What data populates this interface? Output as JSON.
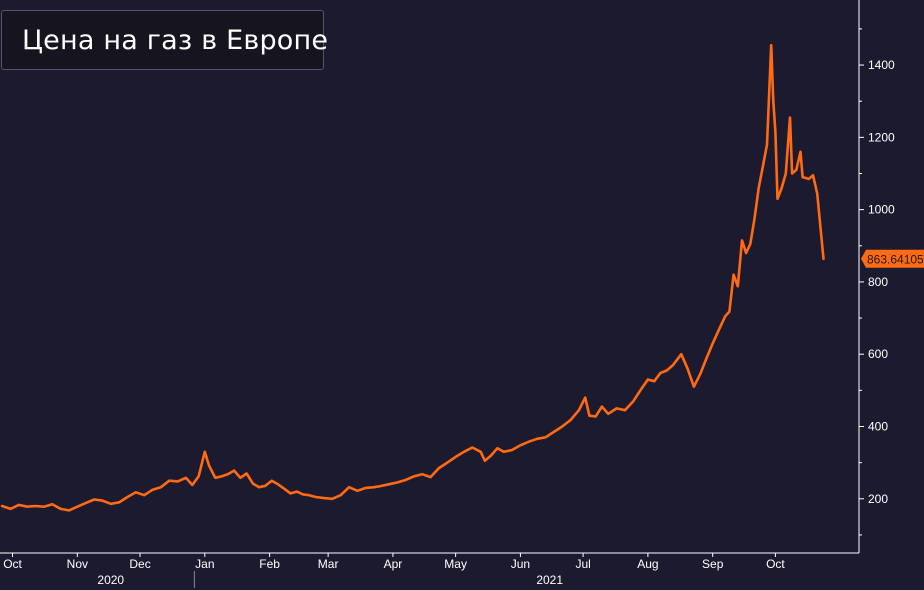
{
  "chart_data": {
    "type": "line",
    "title": "",
    "series": [
      {
        "name": "Цена на газ в Европе",
        "color": "#ff6a13",
        "last_value_label": "863.64105",
        "points": [
          [
            "2020-10-01",
            180
          ],
          [
            "2020-10-05",
            172
          ],
          [
            "2020-10-09",
            183
          ],
          [
            "2020-10-13",
            178
          ],
          [
            "2020-10-17",
            180
          ],
          [
            "2020-10-21",
            178
          ],
          [
            "2020-10-25",
            185
          ],
          [
            "2020-10-29",
            172
          ],
          [
            "2020-11-02",
            168
          ],
          [
            "2020-11-06",
            178
          ],
          [
            "2020-11-10",
            188
          ],
          [
            "2020-11-14",
            198
          ],
          [
            "2020-11-18",
            195
          ],
          [
            "2020-11-22",
            186
          ],
          [
            "2020-11-26",
            190
          ],
          [
            "2020-11-30",
            205
          ],
          [
            "2020-12-04",
            218
          ],
          [
            "2020-12-08",
            210
          ],
          [
            "2020-12-12",
            225
          ],
          [
            "2020-12-16",
            232
          ],
          [
            "2020-12-20",
            250
          ],
          [
            "2020-12-24",
            248
          ],
          [
            "2020-12-28",
            258
          ],
          [
            "2020-12-31",
            238
          ],
          [
            "2021-01-03",
            262
          ],
          [
            "2021-01-06",
            330
          ],
          [
            "2021-01-08",
            292
          ],
          [
            "2021-01-11",
            258
          ],
          [
            "2021-01-14",
            262
          ],
          [
            "2021-01-17",
            268
          ],
          [
            "2021-01-20",
            278
          ],
          [
            "2021-01-23",
            258
          ],
          [
            "2021-01-26",
            270
          ],
          [
            "2021-01-29",
            242
          ],
          [
            "2021-02-01",
            232
          ],
          [
            "2021-02-04",
            236
          ],
          [
            "2021-02-07",
            250
          ],
          [
            "2021-02-10",
            240
          ],
          [
            "2021-02-13",
            228
          ],
          [
            "2021-02-16",
            215
          ],
          [
            "2021-02-19",
            220
          ],
          [
            "2021-02-22",
            212
          ],
          [
            "2021-02-25",
            210
          ],
          [
            "2021-02-28",
            205
          ],
          [
            "2021-03-04",
            202
          ],
          [
            "2021-03-08",
            200
          ],
          [
            "2021-03-12",
            210
          ],
          [
            "2021-03-16",
            232
          ],
          [
            "2021-03-20",
            222
          ],
          [
            "2021-03-24",
            230
          ],
          [
            "2021-03-28",
            232
          ],
          [
            "2021-03-31",
            235
          ],
          [
            "2021-04-04",
            240
          ],
          [
            "2021-04-08",
            245
          ],
          [
            "2021-04-12",
            252
          ],
          [
            "2021-04-16",
            262
          ],
          [
            "2021-04-20",
            268
          ],
          [
            "2021-04-24",
            260
          ],
          [
            "2021-04-28",
            285
          ],
          [
            "2021-05-02",
            300
          ],
          [
            "2021-05-06",
            316
          ],
          [
            "2021-05-10",
            330
          ],
          [
            "2021-05-14",
            342
          ],
          [
            "2021-05-18",
            330
          ],
          [
            "2021-05-20",
            305
          ],
          [
            "2021-05-23",
            320
          ],
          [
            "2021-05-26",
            340
          ],
          [
            "2021-05-29",
            330
          ],
          [
            "2021-06-02",
            335
          ],
          [
            "2021-06-06",
            348
          ],
          [
            "2021-06-10",
            358
          ],
          [
            "2021-06-14",
            366
          ],
          [
            "2021-06-18",
            370
          ],
          [
            "2021-06-22",
            385
          ],
          [
            "2021-06-26",
            400
          ],
          [
            "2021-06-30",
            418
          ],
          [
            "2021-07-04",
            445
          ],
          [
            "2021-07-07",
            480
          ],
          [
            "2021-07-09",
            430
          ],
          [
            "2021-07-12",
            428
          ],
          [
            "2021-07-15",
            455
          ],
          [
            "2021-07-18",
            435
          ],
          [
            "2021-07-22",
            450
          ],
          [
            "2021-07-26",
            445
          ],
          [
            "2021-07-30",
            470
          ],
          [
            "2021-08-03",
            505
          ],
          [
            "2021-08-06",
            530
          ],
          [
            "2021-08-09",
            525
          ],
          [
            "2021-08-12",
            548
          ],
          [
            "2021-08-15",
            555
          ],
          [
            "2021-08-18",
            570
          ],
          [
            "2021-08-22",
            600
          ],
          [
            "2021-08-25",
            560
          ],
          [
            "2021-08-28",
            510
          ],
          [
            "2021-08-31",
            545
          ],
          [
            "2021-09-03",
            588
          ],
          [
            "2021-09-06",
            630
          ],
          [
            "2021-09-09",
            668
          ],
          [
            "2021-09-12",
            705
          ],
          [
            "2021-09-14",
            718
          ],
          [
            "2021-09-16",
            820
          ],
          [
            "2021-09-18",
            788
          ],
          [
            "2021-09-20",
            915
          ],
          [
            "2021-09-22",
            880
          ],
          [
            "2021-09-24",
            905
          ],
          [
            "2021-09-26",
            975
          ],
          [
            "2021-09-28",
            1060
          ],
          [
            "2021-09-30",
            1120
          ],
          [
            "2021-10-02",
            1180
          ],
          [
            "2021-10-04",
            1455
          ],
          [
            "2021-10-05",
            1300
          ],
          [
            "2021-10-06",
            1215
          ],
          [
            "2021-10-07",
            1030
          ],
          [
            "2021-10-09",
            1060
          ],
          [
            "2021-10-11",
            1100
          ],
          [
            "2021-10-13",
            1255
          ],
          [
            "2021-10-14",
            1100
          ],
          [
            "2021-10-16",
            1110
          ],
          [
            "2021-10-18",
            1160
          ],
          [
            "2021-10-19",
            1090
          ],
          [
            "2021-10-22",
            1085
          ],
          [
            "2021-10-24",
            1095
          ],
          [
            "2021-10-26",
            1045
          ],
          [
            "2021-10-29",
            864
          ]
        ]
      }
    ],
    "xlim": [
      "2020-09-30",
      "2021-11-15"
    ],
    "ylim": [
      50,
      1580
    ],
    "yticks": [
      200,
      400,
      600,
      800,
      1000,
      1200,
      1400
    ],
    "xticks": [
      {
        "date": "2020-10-06",
        "label": "Oct"
      },
      {
        "date": "2020-11-06",
        "label": "Nov"
      },
      {
        "date": "2020-12-06",
        "label": "Dec"
      },
      {
        "date": "2021-01-06",
        "label": "Jan"
      },
      {
        "date": "2021-02-06",
        "label": "Feb"
      },
      {
        "date": "2021-03-06",
        "label": "Mar"
      },
      {
        "date": "2021-04-06",
        "label": "Apr"
      },
      {
        "date": "2021-05-06",
        "label": "May"
      },
      {
        "date": "2021-06-06",
        "label": "Jun"
      },
      {
        "date": "2021-07-06",
        "label": "Jul"
      },
      {
        "date": "2021-08-06",
        "label": "Aug"
      },
      {
        "date": "2021-09-06",
        "label": "Sep"
      },
      {
        "date": "2021-10-06",
        "label": "Oct"
      }
    ],
    "year_labels": [
      {
        "date": "2020-11-22",
        "label": "2020"
      },
      {
        "date": "2021-06-20",
        "label": "2021"
      }
    ],
    "year_divider": "2021-01-01",
    "legend_placement": "top-left",
    "grid": false,
    "colors": {
      "background": "#1c1a2e",
      "axis": "#ffffff",
      "tick_text": "#ffffff",
      "legend_bg": "#15141f"
    }
  }
}
